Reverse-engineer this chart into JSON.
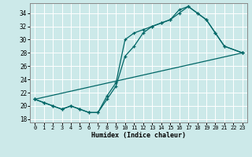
{
  "xlabel": "Humidex (Indice chaleur)",
  "background_color": "#cce9e9",
  "grid_color": "#ffffff",
  "line_color": "#006666",
  "xlim": [
    -0.5,
    23.5
  ],
  "ylim": [
    17.5,
    35.5
  ],
  "yticks": [
    18,
    20,
    22,
    24,
    26,
    28,
    30,
    32,
    34
  ],
  "xticks": [
    0,
    1,
    2,
    3,
    4,
    5,
    6,
    7,
    8,
    9,
    10,
    11,
    12,
    13,
    14,
    15,
    16,
    17,
    18,
    19,
    20,
    21,
    22,
    23
  ],
  "series1_x": [
    0,
    23
  ],
  "series1_y": [
    21.0,
    28.0
  ],
  "series2_x": [
    0,
    1,
    2,
    3,
    4,
    5,
    6,
    7,
    8,
    9,
    10,
    11,
    12,
    13,
    14,
    15,
    16,
    17,
    18,
    19,
    20,
    21,
    23
  ],
  "series2_y": [
    21.0,
    20.5,
    20.0,
    19.5,
    20.0,
    19.5,
    19.0,
    19.0,
    21.0,
    23.0,
    27.5,
    29.0,
    31.0,
    32.0,
    32.5,
    33.0,
    34.0,
    35.0,
    34.0,
    33.0,
    31.0,
    29.0,
    28.0
  ],
  "series3_x": [
    0,
    1,
    2,
    3,
    4,
    5,
    6,
    7,
    8,
    9,
    10,
    11,
    12,
    13,
    14,
    15,
    16,
    17,
    18,
    19,
    20,
    21,
    23
  ],
  "series3_y": [
    21.0,
    20.5,
    20.0,
    19.5,
    20.0,
    19.5,
    19.0,
    19.0,
    21.5,
    23.5,
    30.0,
    31.0,
    31.5,
    32.0,
    32.5,
    33.0,
    34.5,
    35.0,
    34.0,
    33.0,
    31.0,
    29.0,
    28.0
  ]
}
